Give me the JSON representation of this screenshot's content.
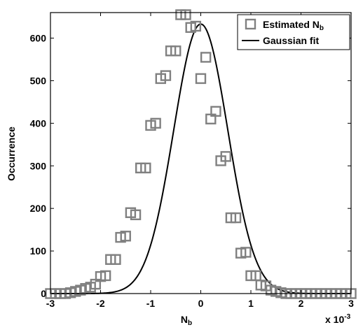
{
  "chart_data": {
    "type": "scatter",
    "title": "",
    "xlabel": "N",
    "xlabel_sub": "b",
    "ylabel": "Occurrence",
    "x_exponent_label": "x 10",
    "x_exponent": "-3",
    "xlim": [
      -3,
      3
    ],
    "ylim": [
      0,
      660
    ],
    "xticks": [
      -3,
      -2,
      -1,
      0,
      1,
      2,
      3
    ],
    "yticks": [
      0,
      100,
      200,
      300,
      400,
      500,
      600
    ],
    "grid": false,
    "legend_position": "top-right",
    "series": [
      {
        "name": "Estimated N",
        "name_sub": "b",
        "kind": "markers",
        "marker": "square",
        "color": "#808080",
        "x": [
          -3.0,
          -2.9,
          -2.8,
          -2.7,
          -2.6,
          -2.5,
          -2.4,
          -2.3,
          -2.2,
          -2.1,
          -2.0,
          -1.9,
          -1.8,
          -1.7,
          -1.6,
          -1.5,
          -1.4,
          -1.3,
          -1.2,
          -1.1,
          -1.0,
          -0.9,
          -0.8,
          -0.7,
          -0.6,
          -0.5,
          -0.4,
          -0.3,
          -0.2,
          -0.1,
          0.0,
          0.1,
          0.2,
          0.3,
          0.4,
          0.5,
          0.6,
          0.7,
          0.8,
          0.9,
          1.0,
          1.1,
          1.2,
          1.3,
          1.4,
          1.5,
          1.6,
          1.7,
          1.8,
          1.9,
          2.0,
          2.1,
          2.2,
          2.3,
          2.4,
          2.5,
          2.6,
          2.7,
          2.8,
          2.9,
          3.0
        ],
        "y": [
          0,
          0,
          0,
          0,
          2,
          5,
          8,
          12,
          15,
          22,
          40,
          42,
          80,
          80,
          132,
          135,
          190,
          185,
          295,
          295,
          395,
          400,
          505,
          512,
          570,
          570,
          655,
          655,
          625,
          628,
          505,
          555,
          410,
          428,
          312,
          322,
          178,
          178,
          95,
          97,
          42,
          42,
          20,
          18,
          8,
          5,
          2,
          0,
          0,
          0,
          0,
          0,
          0,
          0,
          0,
          0,
          0,
          0,
          0,
          0,
          0
        ]
      },
      {
        "name": "Gaussian fit",
        "kind": "line",
        "color": "#000000",
        "amplitude": 633,
        "mean": 0.0,
        "sigma": 0.54
      }
    ]
  }
}
